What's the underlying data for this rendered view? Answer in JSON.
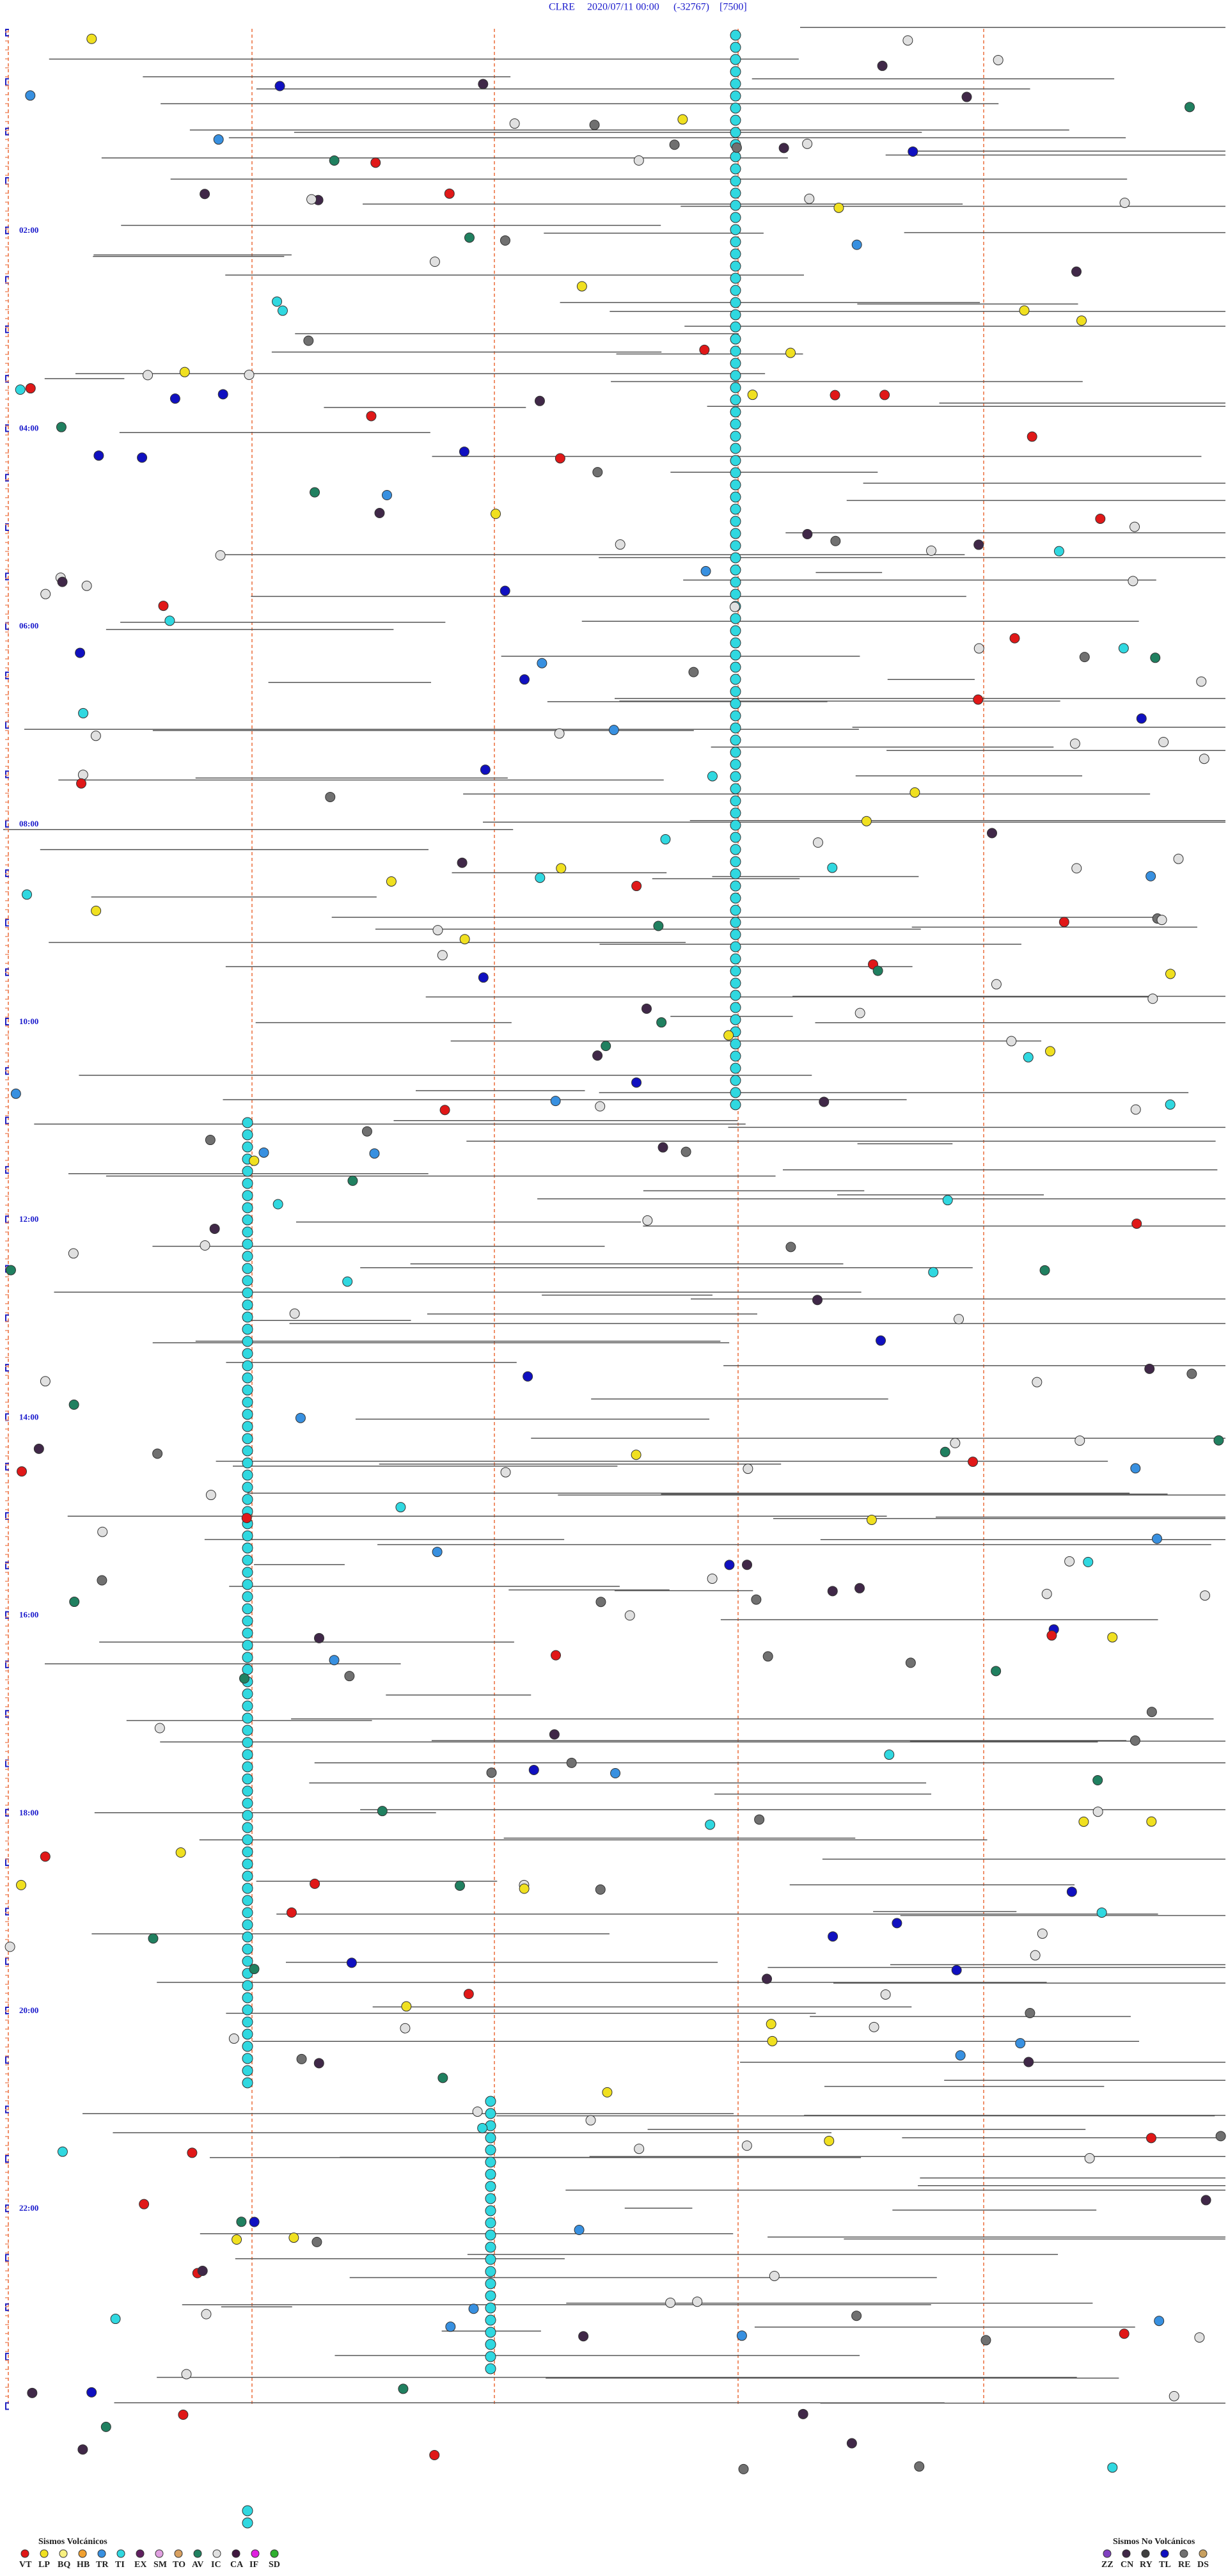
{
  "header": {
    "station": "CLRE",
    "datetime": "2020/07/11 00:00",
    "code": "(-32767)",
    "samples": "[7500]"
  },
  "time_labels": [
    "02:00",
    "04:00",
    "06:00",
    "08:00",
    "10:00",
    "12:00",
    "14:00",
    "16:00",
    "18:00",
    "20:00",
    "22:00"
  ],
  "legend_volcanic": {
    "title": "Sismos Volcánicos",
    "items": [
      {
        "code": "VT",
        "color": "#e01818"
      },
      {
        "code": "LP",
        "color": "#f0e020"
      },
      {
        "code": "BQ",
        "color": "#f8f080"
      },
      {
        "code": "HB",
        "color": "#f0a030"
      },
      {
        "code": "TR",
        "color": "#3890e0"
      },
      {
        "code": "TI",
        "color": "#30d8e0"
      },
      {
        "code": "EX",
        "color": "#602060"
      },
      {
        "code": "SM",
        "color": "#e0a0e0"
      },
      {
        "code": "TO",
        "color": "#d8a060"
      },
      {
        "code": "AV",
        "color": "#208060"
      },
      {
        "code": "IC",
        "color": "#e0e0e0"
      },
      {
        "code": "CA",
        "color": "#401840"
      },
      {
        "code": "IF",
        "color": "#e020e0"
      },
      {
        "code": "SD",
        "color": "#30b030"
      }
    ]
  },
  "legend_non_volcanic": {
    "title": "Sismos No Volcánicos",
    "items": [
      {
        "code": "ZZ",
        "color": "#8040c0"
      },
      {
        "code": "CN",
        "color": "#402848"
      },
      {
        "code": "RY",
        "color": "#404040"
      },
      {
        "code": "TL",
        "color": "#1010c0"
      },
      {
        "code": "RE",
        "color": "#707070"
      },
      {
        "code": "DS",
        "color": "#c8a060"
      }
    ]
  }
}
